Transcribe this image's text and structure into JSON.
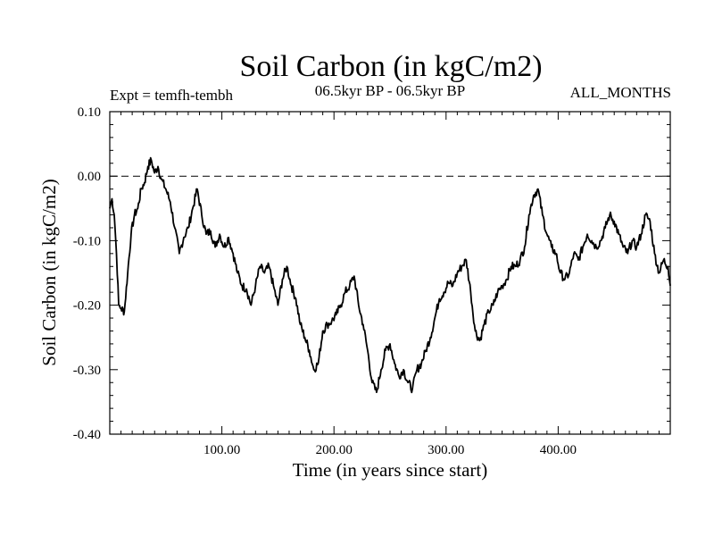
{
  "chart_data": {
    "type": "line",
    "title": "Soil Carbon (in kgC/m2)",
    "subtitle_left": "Expt = temfh-tembh",
    "subtitle_center": "06.5kyr BP - 06.5kyr BP",
    "subtitle_right": "ALL_MONTHS",
    "xlabel": "Time (in years since start)",
    "ylabel": "Soil Carbon (in kgC/m2)",
    "xlim": [
      0,
      500
    ],
    "ylim": [
      -0.4,
      0.1
    ],
    "x_ticks": [
      100,
      200,
      300,
      400
    ],
    "x_tick_labels": [
      "100.00",
      "200.00",
      "300.00",
      "400.00"
    ],
    "y_ticks": [
      0.1,
      0.0,
      -0.1,
      -0.2,
      -0.3,
      -0.4
    ],
    "y_tick_labels": [
      "0.10",
      "0.00",
      "-0.10",
      "-0.20",
      "-0.30",
      "-0.40"
    ],
    "reference_line_y": 0.0,
    "series": [
      {
        "name": "Soil Carbon",
        "x": [
          0,
          2,
          4,
          6,
          8,
          10,
          13,
          16,
          19,
          22,
          25,
          28,
          31,
          34,
          37,
          40,
          43,
          46,
          50,
          54,
          58,
          62,
          66,
          70,
          74,
          78,
          82,
          86,
          90,
          94,
          98,
          102,
          106,
          110,
          114,
          118,
          122,
          126,
          130,
          134,
          138,
          142,
          146,
          150,
          154,
          158,
          162,
          166,
          170,
          174,
          178,
          182,
          186,
          190,
          194,
          198,
          202,
          206,
          210,
          214,
          218,
          222,
          226,
          230,
          234,
          238,
          242,
          246,
          250,
          254,
          258,
          262,
          266,
          270,
          274,
          278,
          282,
          286,
          290,
          294,
          298,
          302,
          306,
          310,
          314,
          318,
          322,
          326,
          330,
          334,
          338,
          342,
          346,
          350,
          354,
          358,
          362,
          366,
          370,
          374,
          378,
          382,
          386,
          390,
          394,
          398,
          402,
          406,
          410,
          414,
          418,
          422,
          426,
          430,
          434,
          438,
          442,
          446,
          450,
          454,
          458,
          462,
          466,
          470,
          474,
          478,
          482,
          486,
          490,
          494,
          498,
          500
        ],
        "y": [
          -0.05,
          -0.035,
          -0.06,
          -0.12,
          -0.2,
          -0.205,
          -0.21,
          -0.15,
          -0.09,
          -0.06,
          -0.05,
          -0.02,
          -0.01,
          0.015,
          0.025,
          0.005,
          0.015,
          -0.005,
          -0.02,
          -0.04,
          -0.08,
          -0.12,
          -0.095,
          -0.08,
          -0.05,
          -0.02,
          -0.06,
          -0.09,
          -0.085,
          -0.11,
          -0.09,
          -0.11,
          -0.095,
          -0.12,
          -0.15,
          -0.17,
          -0.175,
          -0.2,
          -0.17,
          -0.14,
          -0.15,
          -0.14,
          -0.17,
          -0.2,
          -0.16,
          -0.14,
          -0.17,
          -0.19,
          -0.23,
          -0.25,
          -0.27,
          -0.3,
          -0.29,
          -0.24,
          -0.23,
          -0.225,
          -0.215,
          -0.2,
          -0.18,
          -0.17,
          -0.155,
          -0.2,
          -0.23,
          -0.27,
          -0.32,
          -0.335,
          -0.3,
          -0.27,
          -0.26,
          -0.29,
          -0.31,
          -0.3,
          -0.32,
          -0.33,
          -0.3,
          -0.29,
          -0.27,
          -0.25,
          -0.22,
          -0.19,
          -0.18,
          -0.165,
          -0.17,
          -0.15,
          -0.14,
          -0.13,
          -0.18,
          -0.24,
          -0.255,
          -0.23,
          -0.21,
          -0.2,
          -0.18,
          -0.17,
          -0.16,
          -0.14,
          -0.14,
          -0.13,
          -0.11,
          -0.06,
          -0.03,
          -0.02,
          -0.06,
          -0.09,
          -0.11,
          -0.12,
          -0.15,
          -0.16,
          -0.15,
          -0.12,
          -0.13,
          -0.11,
          -0.09,
          -0.1,
          -0.11,
          -0.1,
          -0.08,
          -0.06,
          -0.07,
          -0.09,
          -0.11,
          -0.12,
          -0.1,
          -0.11,
          -0.09,
          -0.06,
          -0.07,
          -0.12,
          -0.15,
          -0.13,
          -0.14,
          -0.17
        ]
      }
    ]
  }
}
